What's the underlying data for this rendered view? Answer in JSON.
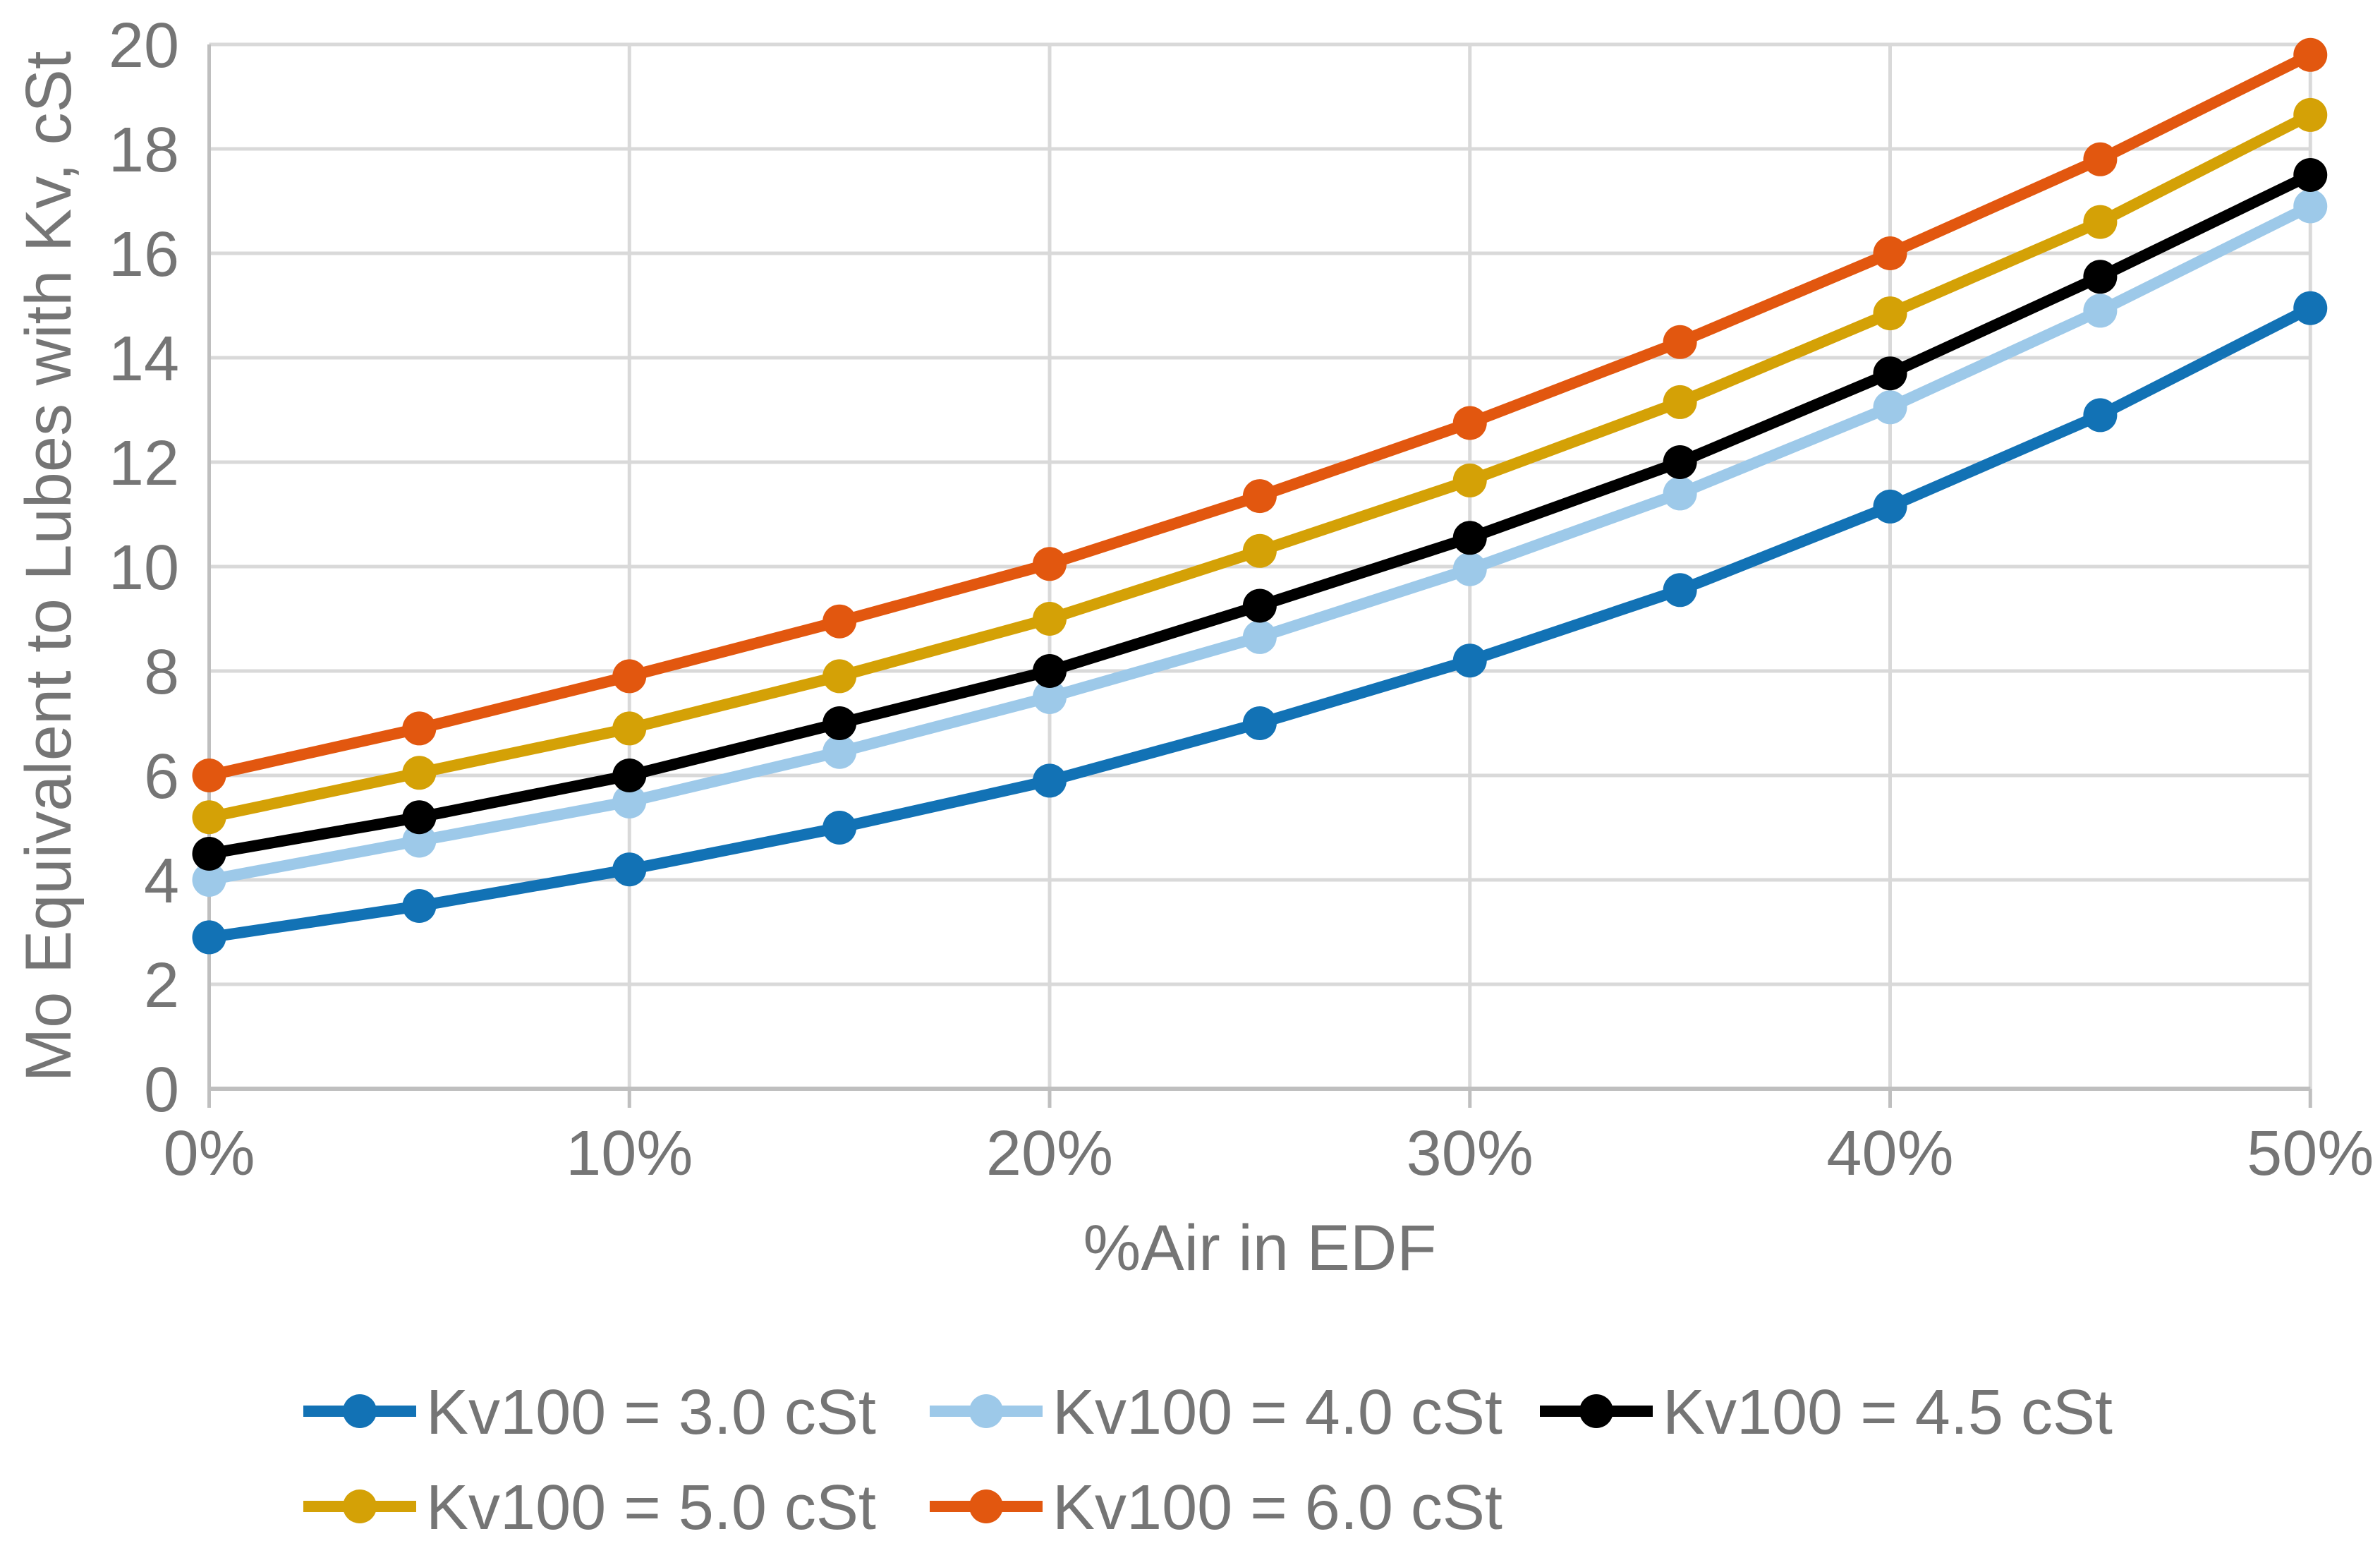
{
  "chart_data": {
    "type": "line",
    "title": "",
    "xlabel": "%Air in EDF",
    "ylabel": "Mo Equivalent to Lubes with Kv, cSt",
    "x": [
      0,
      5,
      10,
      15,
      20,
      25,
      30,
      35,
      40,
      45,
      50
    ],
    "x_tick_labels": [
      "0%",
      "10%",
      "20%",
      "30%",
      "40%",
      "50%"
    ],
    "x_tick_values": [
      0,
      10,
      20,
      30,
      40,
      50
    ],
    "xlim": [
      0,
      50
    ],
    "ylim": [
      0,
      20
    ],
    "y_tick_step": 2,
    "grid": true,
    "legend_position": "bottom",
    "marker": "circle",
    "series": [
      {
        "name": "Kv100 = 3.0 cSt",
        "key": "kv100-3.0-cst",
        "color": "#1272B5",
        "values": [
          2.9,
          3.5,
          4.2,
          5.0,
          5.9,
          7.0,
          8.2,
          9.55,
          11.15,
          12.9,
          14.95
        ]
      },
      {
        "name": "Kv100 = 4.0 cSt",
        "key": "kv100-4.0-cst",
        "color": "#9DC9E9",
        "values": [
          4.0,
          4.75,
          5.5,
          6.45,
          7.5,
          8.65,
          9.95,
          11.4,
          13.05,
          14.9,
          16.9
        ]
      },
      {
        "name": "Kv100 = 4.5 cSt",
        "key": "kv100-4.5-cst",
        "color": "#000000",
        "values": [
          4.5,
          5.2,
          6.0,
          7.0,
          8.0,
          9.25,
          10.55,
          12.0,
          13.7,
          15.55,
          17.5
        ]
      },
      {
        "name": "Kv100 = 5.0 cSt",
        "key": "kv100-5.0-cst",
        "color": "#D4A106",
        "values": [
          5.2,
          6.05,
          6.9,
          7.9,
          9.0,
          10.3,
          11.65,
          13.15,
          14.85,
          16.6,
          18.65
        ]
      },
      {
        "name": "Kv100 = 6.0 cSt",
        "key": "kv100-6.0-cst",
        "color": "#E2570F",
        "values": [
          6.0,
          6.9,
          7.9,
          8.95,
          10.05,
          11.35,
          12.75,
          14.3,
          16.0,
          17.8,
          19.8
        ]
      }
    ]
  },
  "style": {
    "grid_color": "#D9D9D9",
    "axis_color": "#BFBFBF",
    "text_color": "#757575",
    "background": "#FFFFFF"
  }
}
